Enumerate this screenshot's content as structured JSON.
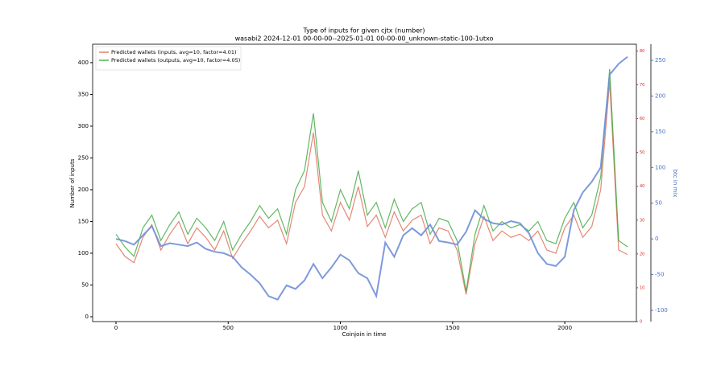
{
  "chart_data": {
    "type": "line",
    "title": "Type of inputs for given cjtx (number)",
    "subtitle": "wasabi2 2024-12-01 00-00-00--2025-01-01 00-00-00_unknown-static-100-1utxo",
    "xlabel": "Coinjoin in time",
    "ylabel": "Number of inputs",
    "y2label": "btc in mix",
    "xlim": [
      -104,
      2319
    ],
    "xticks": [
      0,
      500,
      1000,
      1500,
      2000
    ],
    "ylim": [
      -7.6,
      429
    ],
    "yticks": [
      0,
      50,
      100,
      150,
      200,
      250,
      300,
      350,
      400
    ],
    "y2lim": [
      -115.7,
      272.5
    ],
    "y2ticks": [
      -100,
      -50,
      0,
      50,
      100,
      150,
      200,
      250
    ],
    "y3lim": [
      0,
      82
    ],
    "y3ticks": [
      0,
      10,
      20,
      30,
      40,
      50,
      60,
      70,
      80
    ],
    "legend": "upper left",
    "x": [
      0,
      40,
      80,
      120,
      160,
      200,
      240,
      280,
      320,
      360,
      400,
      440,
      480,
      520,
      560,
      600,
      640,
      680,
      720,
      760,
      800,
      840,
      880,
      920,
      960,
      1000,
      1040,
      1080,
      1120,
      1160,
      1200,
      1240,
      1280,
      1320,
      1360,
      1400,
      1440,
      1480,
      1520,
      1560,
      1600,
      1640,
      1680,
      1720,
      1760,
      1800,
      1840,
      1880,
      1920,
      1960,
      2000,
      2040,
      2080,
      2120,
      2160,
      2200,
      2240,
      2280
    ],
    "series": [
      {
        "name": "Predicted wallets (inputs, avg=10, factor=4.01)",
        "color": "#d9604a",
        "values": [
          115,
          95,
          85,
          125,
          145,
          105,
          130,
          150,
          115,
          140,
          125,
          105,
          135,
          92,
          115,
          135,
          158,
          140,
          152,
          115,
          180,
          205,
          290,
          160,
          135,
          180,
          152,
          205,
          142,
          160,
          125,
          165,
          135,
          152,
          160,
          115,
          140,
          135,
          105,
          35,
          115,
          158,
          120,
          135,
          125,
          130,
          120,
          135,
          105,
          100,
          140,
          160,
          125,
          142,
          200,
          370,
          105,
          98
        ]
      },
      {
        "name": "Predicted wallets (outputs, avg=10, factor=4.05)",
        "color": "#2ca02c",
        "values": [
          130,
          110,
          95,
          140,
          160,
          120,
          145,
          165,
          130,
          155,
          140,
          120,
          150,
          105,
          130,
          150,
          175,
          155,
          170,
          130,
          200,
          230,
          320,
          180,
          150,
          200,
          170,
          230,
          160,
          180,
          140,
          185,
          150,
          170,
          180,
          130,
          155,
          150,
          120,
          40,
          130,
          175,
          135,
          150,
          140,
          145,
          135,
          150,
          120,
          115,
          155,
          180,
          140,
          160,
          220,
          390,
          120,
          110
        ]
      },
      {
        "name": "btc in mix",
        "color": "#6f8fd8",
        "axis": "y2",
        "values": [
          0,
          -3,
          -8,
          5,
          18,
          -10,
          -6,
          -8,
          -10,
          -5,
          -14,
          -18,
          -20,
          -25,
          -40,
          -50,
          -62,
          -80,
          -85,
          -65,
          -70,
          -58,
          -35,
          -55,
          -40,
          -22,
          -30,
          -48,
          -55,
          -80,
          -5,
          -25,
          5,
          15,
          5,
          20,
          -3,
          -5,
          -8,
          10,
          40,
          28,
          22,
          20,
          25,
          22,
          8,
          -20,
          -35,
          -38,
          -25,
          40,
          65,
          80,
          100,
          230,
          245,
          255
        ]
      }
    ]
  }
}
